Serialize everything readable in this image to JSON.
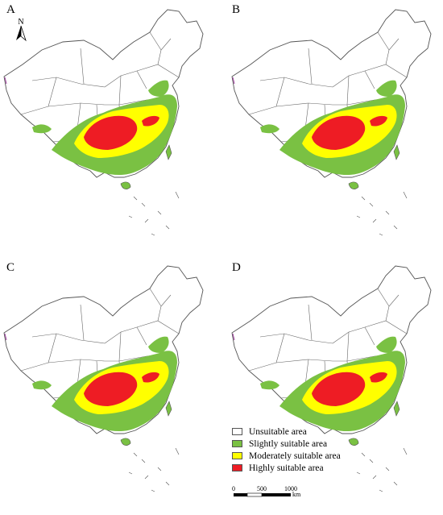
{
  "panels": [
    {
      "label": "A"
    },
    {
      "label": "B"
    },
    {
      "label": "C"
    },
    {
      "label": "D"
    }
  ],
  "north_arrow": {
    "letter": "N"
  },
  "legend": {
    "items": [
      {
        "label": "Unsuitable area",
        "color": "#ffffff"
      },
      {
        "label": "Slightly suitable area",
        "color": "#7ac143"
      },
      {
        "label": "Moderately suitable area",
        "color": "#ffff00"
      },
      {
        "label": "Highly suitable area",
        "color": "#ee1c24"
      }
    ]
  },
  "scale_bar": {
    "ticks": [
      "0",
      "500",
      "1000"
    ],
    "unit": "km"
  },
  "colors": {
    "outline": "#555555",
    "slight": "#7ac143",
    "moderate": "#ffff00",
    "high": "#ee1c24"
  }
}
